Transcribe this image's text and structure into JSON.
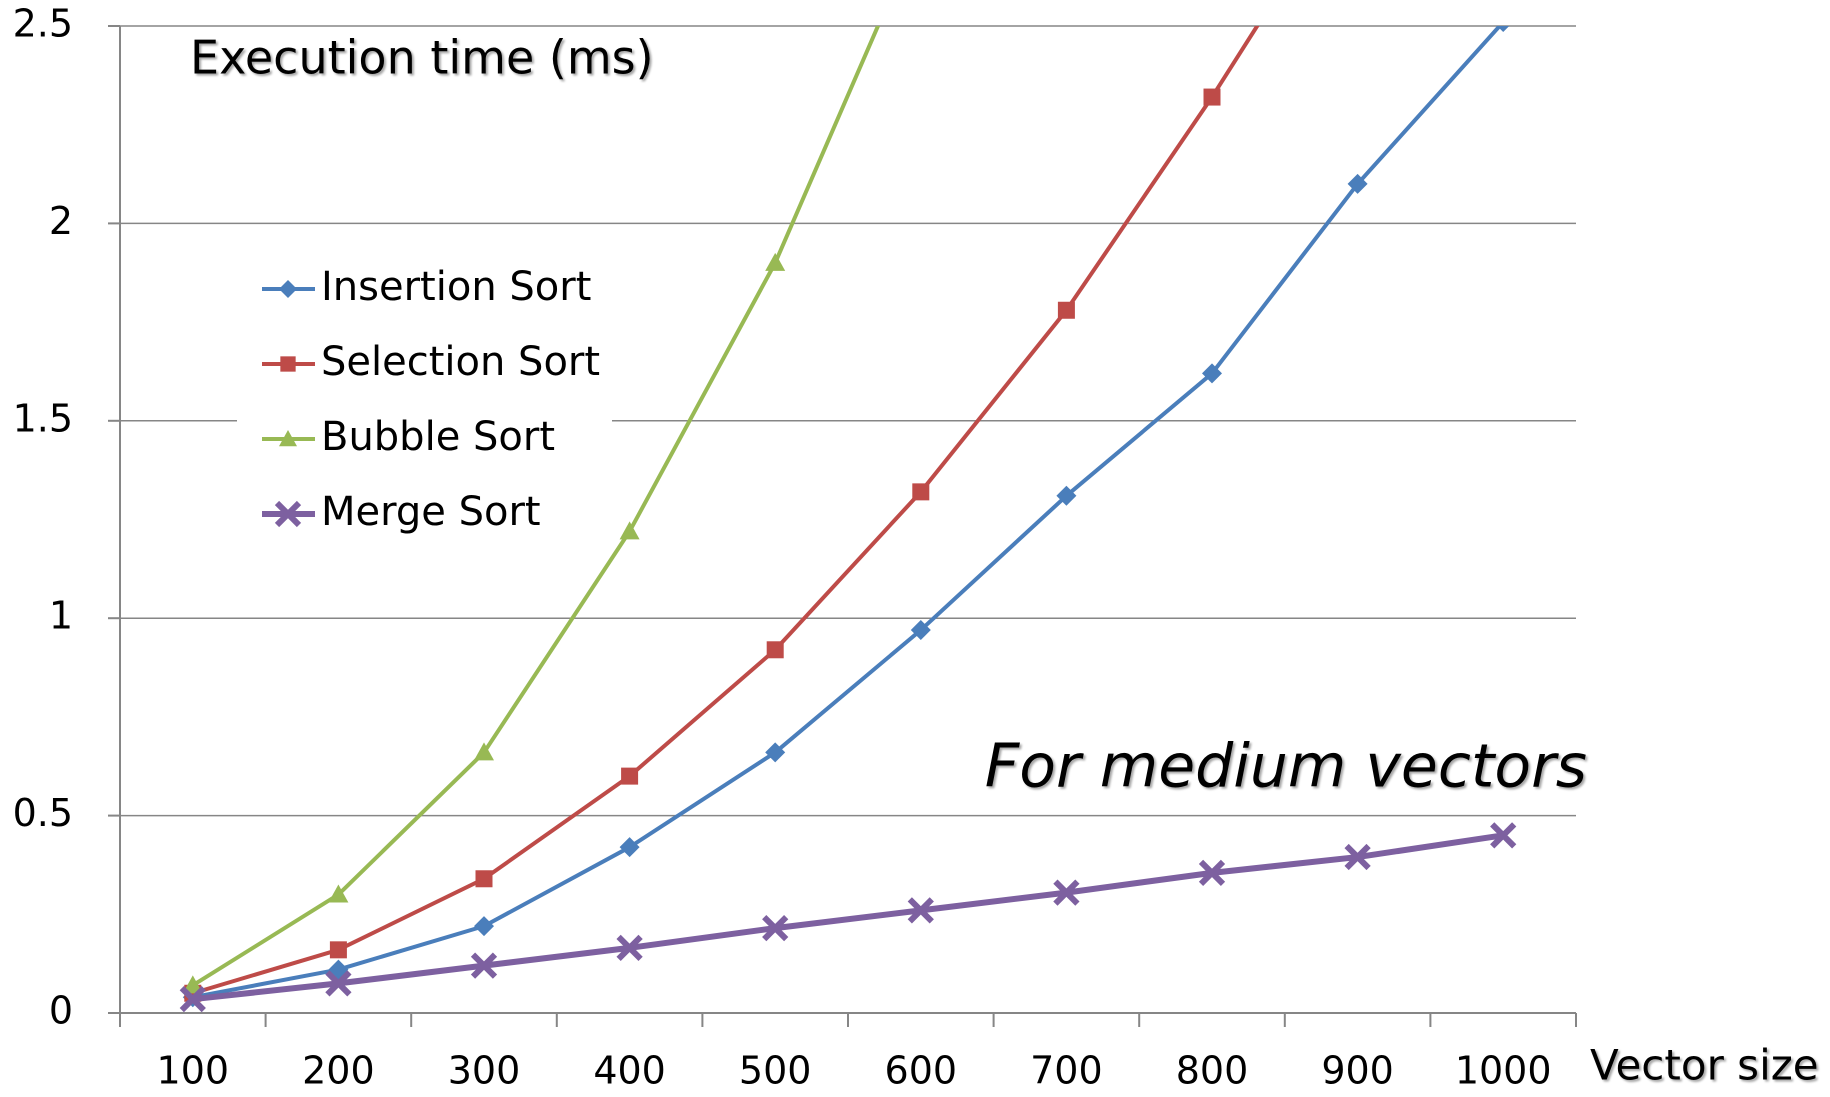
{
  "chart_data": {
    "type": "line",
    "title": "Execution time (ms)",
    "annotation": "For medium vectors",
    "x_label": "Vector size",
    "categories": [
      "100",
      "200",
      "300",
      "400",
      "500",
      "600",
      "700",
      "800",
      "900",
      "1000"
    ],
    "series": [
      {
        "name": "Insertion Sort",
        "color": "#4a7ebb",
        "marker": "diamond",
        "values": [
          0.04,
          0.11,
          0.22,
          0.42,
          0.66,
          0.97,
          1.31,
          1.62,
          2.1,
          2.51
        ]
      },
      {
        "name": "Selection Sort",
        "color": "#be4b48",
        "marker": "square",
        "values": [
          0.05,
          0.16,
          0.34,
          0.6,
          0.92,
          1.32,
          1.78,
          2.32,
          2.9,
          null
        ]
      },
      {
        "name": "Bubble Sort",
        "color": "#98b954",
        "marker": "triangle",
        "values": [
          0.07,
          0.3,
          0.66,
          1.22,
          1.9,
          2.75,
          null,
          null,
          null,
          null
        ]
      },
      {
        "name": "Merge Sort",
        "color": "#7d60a0",
        "marker": "cross",
        "values": [
          0.035,
          0.075,
          0.12,
          0.165,
          0.215,
          0.26,
          0.305,
          0.355,
          0.395,
          0.45
        ]
      }
    ],
    "ylim": [
      0,
      2.5
    ],
    "yticks": [
      0,
      0.5,
      1,
      1.5,
      2,
      2.5
    ],
    "grid": true,
    "legend": "left"
  }
}
